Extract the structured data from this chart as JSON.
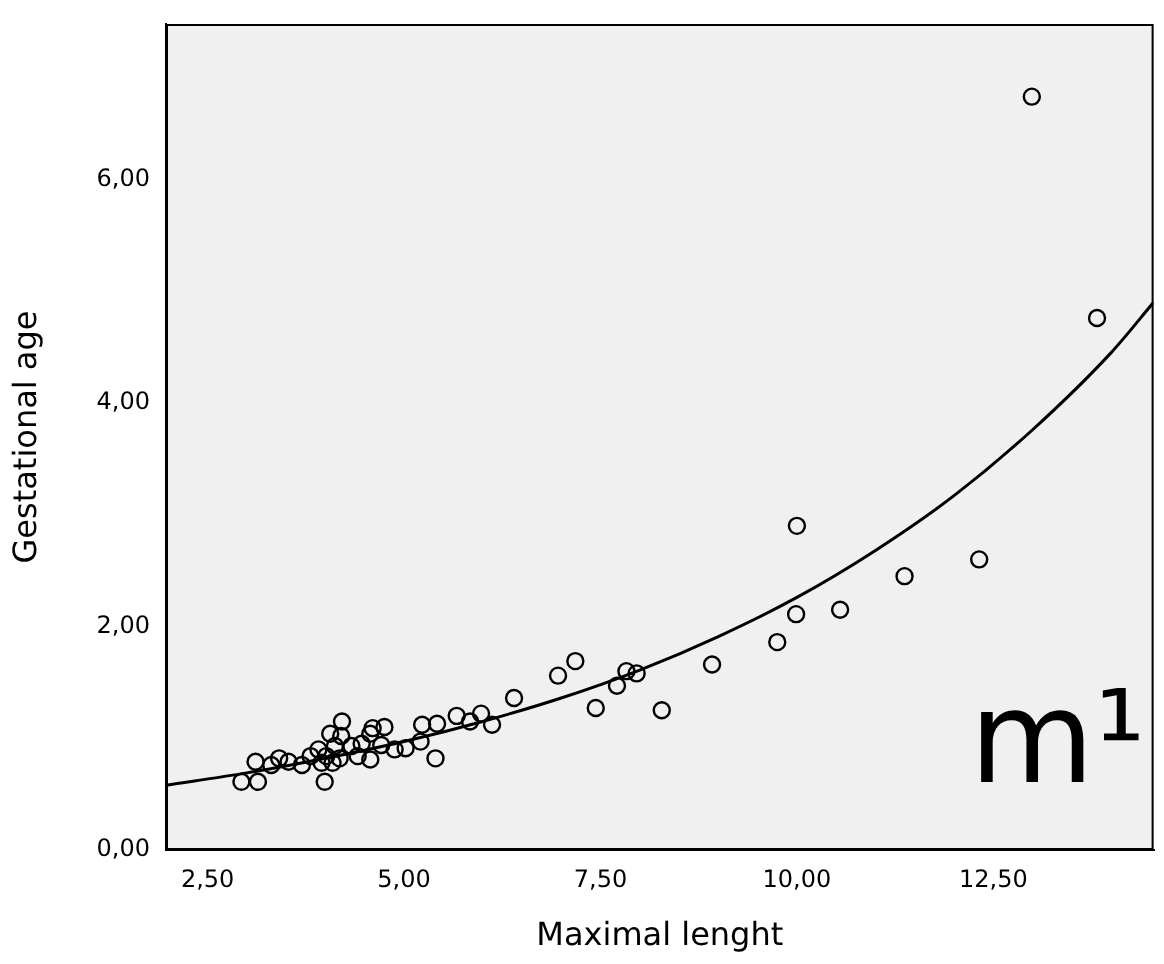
{
  "chart_data": {
    "type": "scatter",
    "xlabel": "Maximal lenght",
    "ylabel": "Gestational age",
    "annotations": [
      "m¹"
    ],
    "xlim": [
      1.97,
      14.54
    ],
    "xticks": [
      {
        "value": 2.5,
        "label": "2,50"
      },
      {
        "value": 5,
        "label": "5,00"
      },
      {
        "value": 7.5,
        "label": "7,50"
      },
      {
        "value": 10,
        "label": "10,00"
      },
      {
        "value": 12.5,
        "label": "12,50"
      }
    ],
    "ylim": [
      0,
      7.39
    ],
    "yticks": [
      {
        "value": 0,
        "label": "0,00"
      },
      {
        "value": 2,
        "label": "2,00"
      },
      {
        "value": 4,
        "label": "4,00"
      },
      {
        "value": 6,
        "label": "6,00"
      }
    ],
    "series": [
      {
        "marker": "circle",
        "color": "#000000",
        "x": [
          2.93,
          3.14,
          3.11,
          3.31,
          3.41,
          3.53,
          3.7,
          3.81,
          3.91,
          3.99,
          4.01,
          4.06,
          4.12,
          4.18,
          4.21,
          4.2,
          4.09,
          3.95,
          4.33,
          4.41,
          4.57,
          4.57,
          4.6,
          4.75,
          4.46,
          4.71,
          4.88,
          5.02,
          5.21,
          5.23,
          5.4,
          5.42,
          5.67,
          5.84,
          5.98,
          6.12,
          6.4,
          6.96,
          7.18,
          7.44,
          7.71,
          7.83,
          7.96,
          8.28,
          8.92,
          9.75,
          9.99,
          10.0,
          10.55,
          11.37,
          12.32,
          12.99,
          13.82
        ],
        "values": [
          0.61,
          0.61,
          0.79,
          0.76,
          0.82,
          0.79,
          0.76,
          0.84,
          0.9,
          0.61,
          0.84,
          1.04,
          0.93,
          0.82,
          1.15,
          1.02,
          0.78,
          0.78,
          0.93,
          0.84,
          0.81,
          1.04,
          1.09,
          1.1,
          0.95,
          0.94,
          0.9,
          0.91,
          0.97,
          1.12,
          0.82,
          1.13,
          1.2,
          1.15,
          1.22,
          1.12,
          1.36,
          1.56,
          1.69,
          1.27,
          1.47,
          1.6,
          1.58,
          1.25,
          1.66,
          1.86,
          2.11,
          2.9,
          2.15,
          2.45,
          2.6,
          6.74,
          4.76
        ]
      },
      {
        "type": "line",
        "marker": "none",
        "color": "#000000",
        "x": [
          1.97,
          3,
          4,
          5,
          6,
          7,
          8,
          9,
          10,
          11,
          12,
          13,
          14,
          14.54
        ],
        "values": [
          0.58,
          0.69,
          0.82,
          0.97,
          1.15,
          1.36,
          1.61,
          1.91,
          2.26,
          2.68,
          3.17,
          3.76,
          4.45,
          4.9
        ]
      }
    ]
  }
}
